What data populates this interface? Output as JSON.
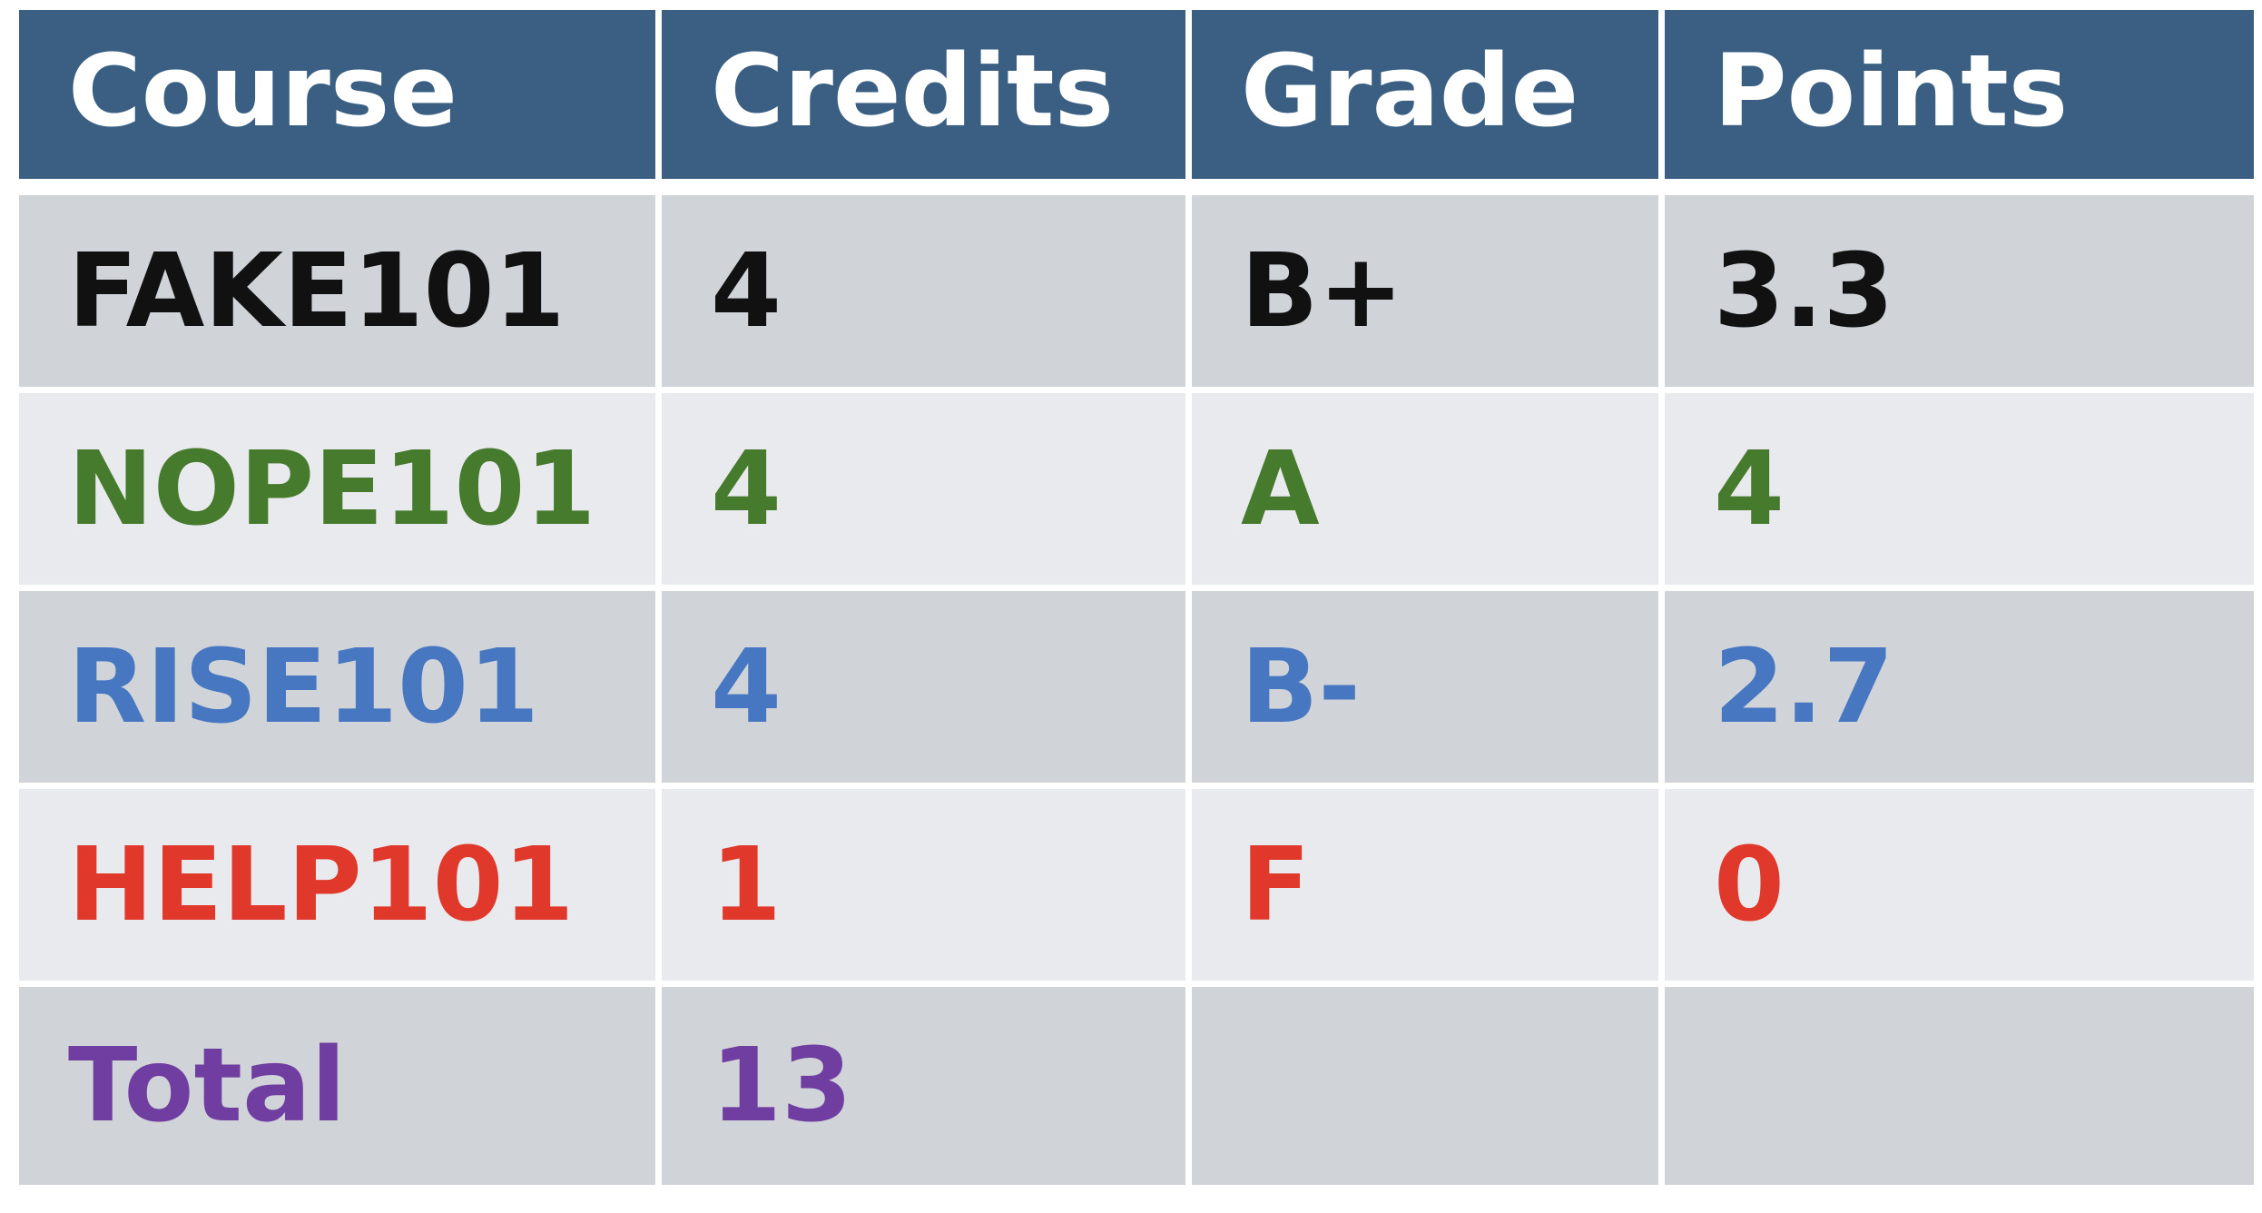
{
  "table": {
    "headers": [
      "Course",
      "Credits",
      "Grade",
      "Points"
    ],
    "header_bg": "#3a5f82",
    "header_text_color": "#ffffff",
    "row_bg_odd": "#d0d3d8",
    "row_bg_even": "#e9eaee",
    "rows": [
      {
        "cells": [
          "FAKE101",
          "4",
          "B+",
          "3.3"
        ],
        "color": "#111111"
      },
      {
        "cells": [
          "NOPE101",
          "4",
          "A",
          "4"
        ],
        "color": "#467a2c"
      },
      {
        "cells": [
          "RISE101",
          "4",
          "B-",
          "2.7"
        ],
        "color": "#4677c0"
      },
      {
        "cells": [
          "HELP101",
          "1",
          "F",
          "0"
        ],
        "color": "#e0392b"
      },
      {
        "cells": [
          "Total",
          "13",
          "",
          ""
        ],
        "color": "#6f3ea0"
      }
    ]
  }
}
